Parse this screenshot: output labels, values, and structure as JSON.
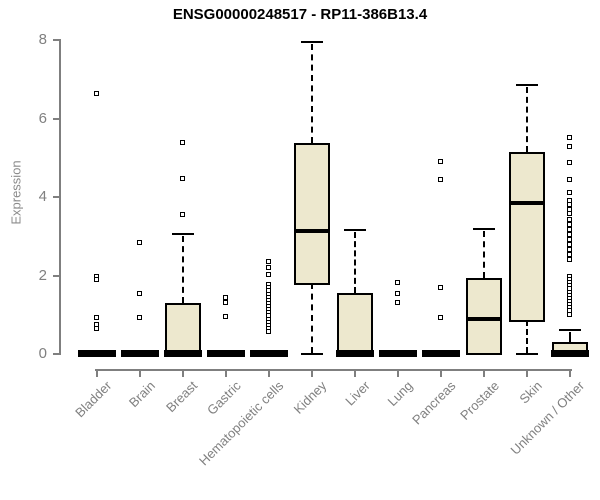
{
  "chart_data": {
    "type": "boxplot",
    "title": "ENSG00000248517 - RP11-386B13.4",
    "xlabel": "",
    "ylabel": "Expression",
    "ylim": [
      0,
      8
    ],
    "yticks": [
      0,
      2,
      4,
      6,
      8
    ],
    "grid": false,
    "legend": "none",
    "categories": [
      "Bladder",
      "Brain",
      "Breast",
      "Gastric",
      "Hematopoietic cells",
      "Kidney",
      "Liver",
      "Lung",
      "Pancreas",
      "Prostate",
      "Skin",
      "Unknown / Other"
    ],
    "series": [
      {
        "name": "Bladder",
        "q1": 0,
        "median": 0,
        "q3": 0,
        "whisker_low": 0,
        "whisker_high": 0,
        "outliers": [
          6.6,
          1.93,
          1.86,
          0.88,
          0.72,
          0.6
        ]
      },
      {
        "name": "Brain",
        "q1": 0,
        "median": 0,
        "q3": 0,
        "whisker_low": 0,
        "whisker_high": 0,
        "outliers": [
          2.8,
          1.5,
          0.9
        ]
      },
      {
        "name": "Breast",
        "q1": 0,
        "median": 0.02,
        "q3": 1.28,
        "whisker_low": 0,
        "whisker_high": 3.03,
        "outliers": [
          5.36,
          4.43,
          3.52
        ]
      },
      {
        "name": "Gastric",
        "q1": 0,
        "median": 0,
        "q3": 0,
        "whisker_low": 0,
        "whisker_high": 0,
        "outliers": [
          1.39,
          1.28,
          0.92
        ]
      },
      {
        "name": "Hematopoietic cells",
        "q1": 0,
        "median": 0,
        "q3": 0,
        "whisker_low": 0,
        "whisker_high": 0,
        "outliers": [
          2.32,
          2.17,
          1.99,
          1.73,
          1.65,
          1.57,
          1.49,
          1.41,
          1.33,
          1.25,
          1.17,
          1.09,
          1.01,
          0.93,
          0.85,
          0.77,
          0.69,
          0.61,
          0.53
        ]
      },
      {
        "name": "Kidney",
        "q1": 1.79,
        "median": 3.12,
        "q3": 5.34,
        "whisker_low": 0,
        "whisker_high": 7.92,
        "outliers": []
      },
      {
        "name": "Liver",
        "q1": 0,
        "median": 0.02,
        "q3": 1.54,
        "whisker_low": 0,
        "whisker_high": 3.13,
        "outliers": []
      },
      {
        "name": "Lung",
        "q1": 0,
        "median": 0,
        "q3": 0,
        "whisker_low": 0,
        "whisker_high": 0,
        "outliers": [
          1.78,
          1.5,
          1.27
        ]
      },
      {
        "name": "Pancreas",
        "q1": 0,
        "median": 0,
        "q3": 0,
        "whisker_low": 0,
        "whisker_high": 0,
        "outliers": [
          4.87,
          4.42,
          1.66,
          0.9
        ]
      },
      {
        "name": "Prostate",
        "q1": 0,
        "median": 0.86,
        "q3": 1.92,
        "whisker_low": 0,
        "whisker_high": 3.15,
        "outliers": []
      },
      {
        "name": "Skin",
        "q1": 0.84,
        "median": 3.81,
        "q3": 5.11,
        "whisker_low": 0,
        "whisker_high": 6.83,
        "outliers": []
      },
      {
        "name": "Unknown / Other",
        "q1": 0,
        "median": 0.04,
        "q3": 0.29,
        "whisker_low": 0,
        "whisker_high": 0.59,
        "outliers": [
          5.47,
          5.26,
          4.85,
          4.41,
          4.07,
          3.87,
          3.76,
          3.65,
          3.54,
          3.39,
          3.26,
          3.13,
          3.0,
          2.88,
          2.75,
          2.62,
          2.49,
          2.37,
          1.94,
          1.86,
          1.78,
          1.7,
          1.62,
          1.54,
          1.46,
          1.38,
          1.3,
          1.22,
          1.14,
          1.06,
          0.97
        ]
      }
    ],
    "colors": {
      "box_fill": "#EDE8CE",
      "box_border": "#000000",
      "median": "#000000",
      "axis": "#7F7F7F",
      "tick_label": "#808080",
      "title": "#000000",
      "background": "#FFFFFF"
    }
  }
}
